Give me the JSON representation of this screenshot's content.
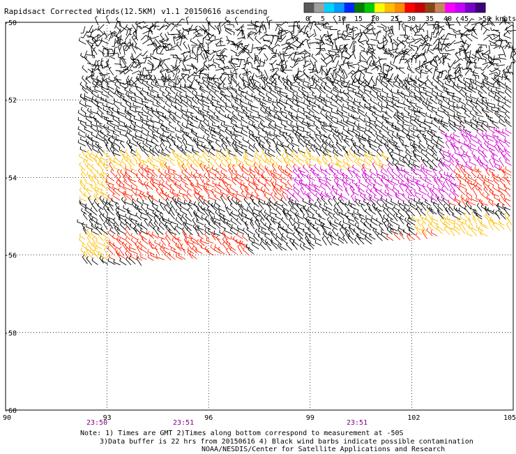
{
  "title": "Rapidsact Corrected Winds(12.5KM) v1.1 20150616 ascending",
  "legend": {
    "labels": [
      "0",
      "5",
      "10",
      "15",
      "20",
      "25",
      "30",
      "35",
      "40",
      "45",
      ">50 knots"
    ],
    "colors": [
      "#5a5a5a",
      "#a0a0a0",
      "#00d2ff",
      "#009cff",
      "#0026ff",
      "#007d00",
      "#00cc00",
      "#ffff00",
      "#ffbe00",
      "#ff8c00",
      "#ff0000",
      "#c80000",
      "#8b4513",
      "#c8875a",
      "#ff00ff",
      "#c800ff",
      "#7800c8",
      "#3c0078"
    ]
  },
  "axes": {
    "lat_labels": [
      "-50",
      "-52",
      "-54",
      "-56",
      "-58",
      "-60"
    ],
    "lon_labels": [
      "90",
      "93",
      "96",
      "99",
      "102",
      "105"
    ],
    "lat_range": [
      -60,
      -50
    ],
    "lon_range": [
      90,
      105
    ],
    "grid": "dotted"
  },
  "times": [
    "23:50",
    "23:51",
    "23:51"
  ],
  "notes": {
    "line1": "Note: 1) Times are GMT 2)Times along bottom correspond to measurement at -50S",
    "line2": "3)Data buffer is 22 hrs from 20150616 4) Black wind barbs indicate possible contamination",
    "line3": "NOAA/NESDIS/Center for Satellite Applications and Research"
  },
  "colors": {
    "contaminated": "#000000",
    "speed_20_25": "#ffbe00",
    "speed_30_35": "#ff2000",
    "speed_40_45": "#d000d0",
    "time_label": "#800080"
  }
}
